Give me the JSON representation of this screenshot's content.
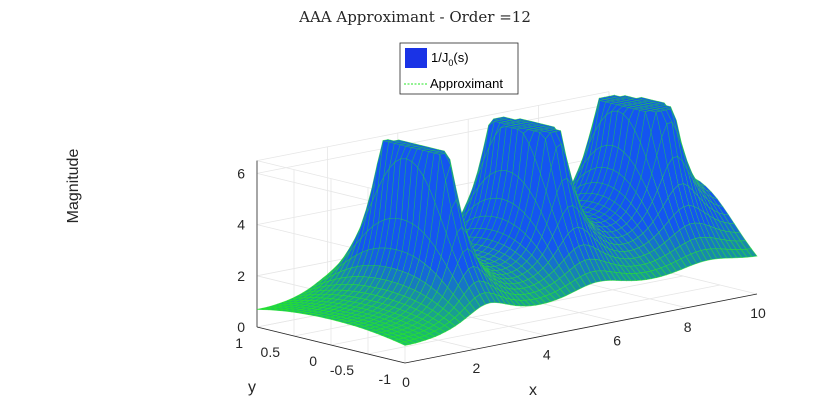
{
  "chart_data": {
    "type": "surface",
    "title": "AAA Approximant - Order =12",
    "xlabel": "x",
    "ylabel": "y",
    "zlabel": "Magnitude",
    "xlim": [
      0,
      10
    ],
    "ylim": [
      -1,
      1
    ],
    "zlim": [
      0,
      6.5
    ],
    "x_ticks": [
      "0",
      "2",
      "4",
      "6",
      "8",
      "10"
    ],
    "y_ticks": [
      "-1",
      "-0.5",
      "0",
      "0.5",
      "1"
    ],
    "z_ticks": [
      "0",
      "2",
      "4",
      "6"
    ],
    "grid": true,
    "legend_position": "top-center",
    "series": [
      {
        "name": "1/J₀(s)",
        "display": "1/J",
        "subscript": "0",
        "suffix": "(s)",
        "style": "surface",
        "color": "#1a33e6"
      },
      {
        "name": "Approximant",
        "display": "Approximant",
        "style": "dashed-mesh",
        "color": "#26e626"
      }
    ],
    "peaks": [
      {
        "x": 2.405,
        "y": 0,
        "z": 5.8
      },
      {
        "x": 5.52,
        "y": 0,
        "z": 5.4
      },
      {
        "x": 8.654,
        "y": 0,
        "z": 7.0
      }
    ]
  }
}
